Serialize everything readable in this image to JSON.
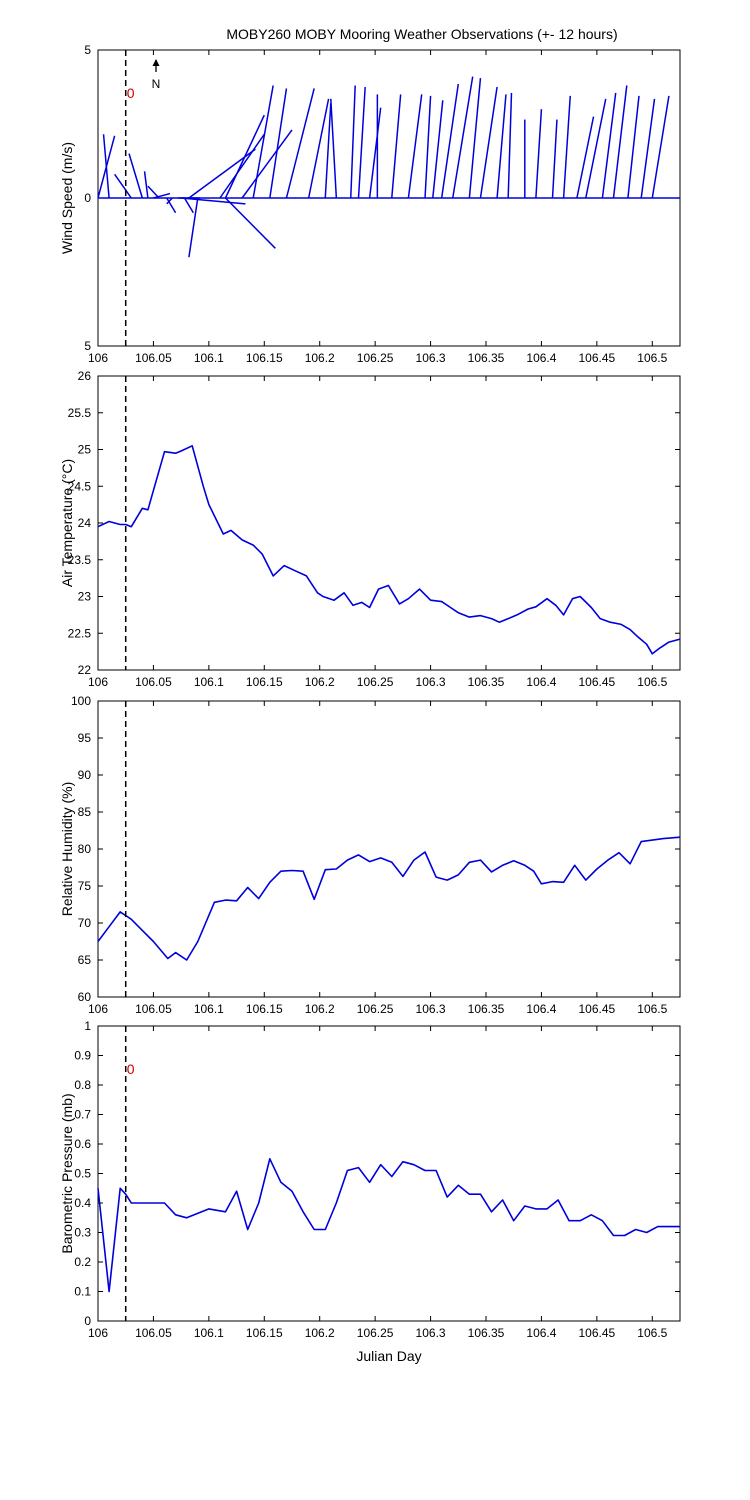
{
  "title": "MOBY260 MOBY Mooring Weather Observations (+- 12 hours)",
  "north_label": "N",
  "colors": {
    "series": "#0000dd",
    "axis": "#000000",
    "marker_text": "#cc0000"
  },
  "chart_data": [
    {
      "type": "vector",
      "ylabel": "Wind Speed (m/s)",
      "xlim": [
        106,
        106.525
      ],
      "ylim": [
        -5,
        5
      ],
      "xticks": [
        "106",
        "106.05",
        "106.1",
        "106.15",
        "106.2",
        "106.25",
        "106.3",
        "106.35",
        "106.4",
        "106.45",
        "106.5"
      ],
      "yticks": [
        "5",
        "0",
        "5"
      ],
      "marker_x": 106.025,
      "marker_label": "0",
      "vectors": [
        {
          "x": 106.0,
          "u": 0.015,
          "v": 2.1
        },
        {
          "x": 106.01,
          "u": -0.005,
          "v": 2.15
        },
        {
          "x": 106.02,
          "u": 0.0,
          "v": 0.0
        },
        {
          "x": 106.03,
          "u": -0.015,
          "v": 0.8
        },
        {
          "x": 106.04,
          "u": -0.012,
          "v": 1.5
        },
        {
          "x": 106.045,
          "u": -0.003,
          "v": 0.9
        },
        {
          "x": 106.05,
          "u": 0.015,
          "v": 0.15
        },
        {
          "x": 106.055,
          "u": -0.01,
          "v": 0.4
        },
        {
          "x": 106.062,
          "u": 0.008,
          "v": -0.5
        },
        {
          "x": 106.067,
          "u": -0.005,
          "v": -0.2
        },
        {
          "x": 106.072,
          "u": 0.02,
          "v": 0.0
        },
        {
          "x": 106.078,
          "u": 0.008,
          "v": -0.5
        },
        {
          "x": 106.075,
          "u": 0.058,
          "v": -0.2
        },
        {
          "x": 106.09,
          "u": -0.008,
          "v": -2.0
        },
        {
          "x": 106.115,
          "u": 0.045,
          "v": -1.7
        },
        {
          "x": 106.082,
          "u": 0.06,
          "v": 1.65
        },
        {
          "x": 106.11,
          "u": 0.04,
          "v": 2.15
        },
        {
          "x": 106.115,
          "u": 0.035,
          "v": 2.8
        },
        {
          "x": 106.13,
          "u": 0.045,
          "v": 2.3
        },
        {
          "x": 106.14,
          "u": 0.018,
          "v": 3.8
        },
        {
          "x": 106.155,
          "u": 0.015,
          "v": 3.7
        },
        {
          "x": 106.17,
          "u": 0.025,
          "v": 3.7
        },
        {
          "x": 106.19,
          "u": 0.018,
          "v": 3.35
        },
        {
          "x": 106.205,
          "u": 0.005,
          "v": 3.2
        },
        {
          "x": 106.215,
          "u": -0.005,
          "v": 3.35
        },
        {
          "x": 106.228,
          "u": 0.004,
          "v": 3.8
        },
        {
          "x": 106.235,
          "u": 0.006,
          "v": 3.75
        },
        {
          "x": 106.245,
          "u": 0.01,
          "v": 3.05
        },
        {
          "x": 106.252,
          "u": 0.0,
          "v": 3.5
        },
        {
          "x": 106.265,
          "u": 0.008,
          "v": 3.5
        },
        {
          "x": 106.28,
          "u": 0.012,
          "v": 3.5
        },
        {
          "x": 106.295,
          "u": 0.005,
          "v": 3.45
        },
        {
          "x": 106.302,
          "u": 0.009,
          "v": 3.3
        },
        {
          "x": 106.31,
          "u": 0.015,
          "v": 3.85
        },
        {
          "x": 106.32,
          "u": 0.018,
          "v": 4.1
        },
        {
          "x": 106.335,
          "u": 0.01,
          "v": 4.05
        },
        {
          "x": 106.345,
          "u": 0.015,
          "v": 3.75
        },
        {
          "x": 106.36,
          "u": 0.008,
          "v": 3.5
        },
        {
          "x": 106.37,
          "u": 0.003,
          "v": 3.55
        },
        {
          "x": 106.385,
          "u": 0.0,
          "v": 2.65
        },
        {
          "x": 106.395,
          "u": 0.005,
          "v": 3.0
        },
        {
          "x": 106.41,
          "u": 0.004,
          "v": 2.65
        },
        {
          "x": 106.42,
          "u": 0.006,
          "v": 3.45
        },
        {
          "x": 106.432,
          "u": 0.015,
          "v": 2.75
        },
        {
          "x": 106.44,
          "u": 0.018,
          "v": 3.35
        },
        {
          "x": 106.455,
          "u": 0.012,
          "v": 3.55
        },
        {
          "x": 106.465,
          "u": 0.012,
          "v": 3.8
        },
        {
          "x": 106.478,
          "u": 0.01,
          "v": 3.45
        },
        {
          "x": 106.49,
          "u": 0.012,
          "v": 3.35
        },
        {
          "x": 106.5,
          "u": 0.015,
          "v": 3.45
        }
      ]
    },
    {
      "type": "line",
      "ylabel": "Air Temperature (°C)",
      "xlim": [
        106,
        106.525
      ],
      "ylim": [
        22,
        26
      ],
      "xticks": [
        "106",
        "106.05",
        "106.1",
        "106.15",
        "106.2",
        "106.25",
        "106.3",
        "106.35",
        "106.4",
        "106.45",
        "106.5"
      ],
      "yticks": [
        "22",
        "22.5",
        "23",
        "23.5",
        "24",
        "24.5",
        "25",
        "25.5",
        "26"
      ],
      "marker_x": 106.025,
      "x": [
        106.0,
        106.01,
        106.02,
        106.025,
        106.03,
        106.04,
        106.045,
        106.06,
        106.07,
        106.075,
        106.085,
        106.095,
        106.1,
        106.113,
        106.12,
        106.13,
        106.14,
        106.148,
        106.158,
        106.168,
        106.178,
        106.188,
        106.198,
        106.203,
        106.213,
        106.222,
        106.23,
        106.238,
        106.245,
        106.253,
        106.262,
        106.272,
        106.28,
        106.29,
        106.3,
        106.31,
        106.318,
        106.325,
        106.335,
        106.345,
        106.355,
        106.362,
        106.37,
        106.378,
        106.388,
        106.395,
        106.405,
        106.413,
        106.42,
        106.428,
        106.435,
        106.445,
        106.453,
        106.462,
        106.472,
        106.48,
        106.487,
        106.495,
        106.5,
        106.507,
        106.515,
        106.525
      ],
      "y": [
        23.95,
        24.02,
        23.98,
        23.98,
        23.95,
        24.2,
        24.18,
        24.97,
        24.95,
        24.98,
        25.05,
        24.5,
        24.25,
        23.85,
        23.9,
        23.77,
        23.7,
        23.58,
        23.28,
        23.42,
        23.35,
        23.28,
        23.05,
        23.0,
        22.95,
        23.05,
        22.88,
        22.92,
        22.85,
        23.1,
        23.15,
        22.9,
        22.97,
        23.1,
        22.95,
        22.93,
        22.85,
        22.78,
        22.72,
        22.74,
        22.7,
        22.65,
        22.7,
        22.75,
        22.83,
        22.86,
        22.97,
        22.88,
        22.75,
        22.97,
        23.0,
        22.85,
        22.7,
        22.65,
        22.62,
        22.55,
        22.45,
        22.35,
        22.22,
        22.3,
        22.38,
        22.42
      ]
    },
    {
      "type": "line",
      "ylabel": "Relative Humidity (%)",
      "xlim": [
        106,
        106.525
      ],
      "ylim": [
        60,
        100
      ],
      "xticks": [
        "106",
        "106.05",
        "106.1",
        "106.15",
        "106.2",
        "106.25",
        "106.3",
        "106.35",
        "106.4",
        "106.45",
        "106.5"
      ],
      "yticks": [
        "60",
        "65",
        "70",
        "75",
        "80",
        "85",
        "90",
        "95",
        "100"
      ],
      "marker_x": 106.025,
      "x": [
        106.0,
        106.01,
        106.02,
        106.03,
        106.04,
        106.05,
        106.063,
        106.07,
        106.08,
        106.09,
        106.105,
        106.115,
        106.125,
        106.135,
        106.145,
        106.155,
        106.165,
        106.175,
        106.185,
        106.195,
        106.205,
        106.215,
        106.225,
        106.235,
        106.245,
        106.255,
        106.265,
        106.275,
        106.285,
        106.295,
        106.305,
        106.315,
        106.325,
        106.335,
        106.345,
        106.355,
        106.365,
        106.375,
        106.385,
        106.393,
        106.4,
        106.41,
        106.42,
        106.43,
        106.44,
        106.45,
        106.46,
        106.47,
        106.48,
        106.49,
        106.5,
        106.51,
        106.525
      ],
      "y": [
        67.5,
        69.5,
        71.5,
        70.5,
        69.0,
        67.5,
        65.2,
        66.0,
        65.0,
        67.5,
        72.8,
        73.1,
        73.0,
        74.8,
        73.3,
        75.5,
        77.0,
        77.1,
        77.0,
        73.2,
        77.2,
        77.3,
        78.5,
        79.2,
        78.3,
        78.8,
        78.2,
        76.3,
        78.5,
        79.6,
        76.2,
        75.8,
        76.5,
        78.2,
        78.5,
        76.9,
        77.8,
        78.4,
        77.8,
        77.0,
        75.3,
        75.6,
        75.5,
        77.8,
        75.8,
        77.3,
        78.5,
        79.5,
        78.0,
        81.0,
        81.2,
        81.4,
        81.6
      ]
    },
    {
      "type": "line",
      "ylabel": "Barometric Pressure (mb)",
      "xlabel": "Julian Day",
      "xlim": [
        106,
        106.525
      ],
      "ylim": [
        0,
        1
      ],
      "xticks": [
        "106",
        "106.05",
        "106.1",
        "106.15",
        "106.2",
        "106.25",
        "106.3",
        "106.35",
        "106.4",
        "106.45",
        "106.5"
      ],
      "yticks": [
        "0",
        "0.1",
        "0.2",
        "0.3",
        "0.4",
        "0.5",
        "0.6",
        "0.7",
        "0.8",
        "0.9",
        "1"
      ],
      "marker_x": 106.025,
      "marker_label": "0",
      "x": [
        106.0,
        106.01,
        106.02,
        106.025,
        106.03,
        106.04,
        106.05,
        106.06,
        106.07,
        106.08,
        106.1,
        106.115,
        106.125,
        106.135,
        106.145,
        106.155,
        106.165,
        106.175,
        106.185,
        106.195,
        106.205,
        106.215,
        106.225,
        106.235,
        106.245,
        106.255,
        106.265,
        106.275,
        106.285,
        106.295,
        106.305,
        106.315,
        106.325,
        106.335,
        106.345,
        106.355,
        106.365,
        106.375,
        106.385,
        106.395,
        106.405,
        106.415,
        106.425,
        106.435,
        106.445,
        106.455,
        106.465,
        106.475,
        106.485,
        106.495,
        106.505,
        106.515,
        106.525
      ],
      "y": [
        0.45,
        0.1,
        0.45,
        0.43,
        0.4,
        0.4,
        0.4,
        0.4,
        0.36,
        0.35,
        0.38,
        0.37,
        0.44,
        0.31,
        0.4,
        0.55,
        0.47,
        0.44,
        0.37,
        0.31,
        0.31,
        0.4,
        0.51,
        0.52,
        0.47,
        0.53,
        0.49,
        0.54,
        0.53,
        0.51,
        0.51,
        0.42,
        0.46,
        0.43,
        0.43,
        0.37,
        0.41,
        0.34,
        0.39,
        0.38,
        0.38,
        0.41,
        0.34,
        0.34,
        0.36,
        0.34,
        0.29,
        0.29,
        0.31,
        0.3,
        0.32,
        0.32,
        0.32
      ]
    }
  ]
}
